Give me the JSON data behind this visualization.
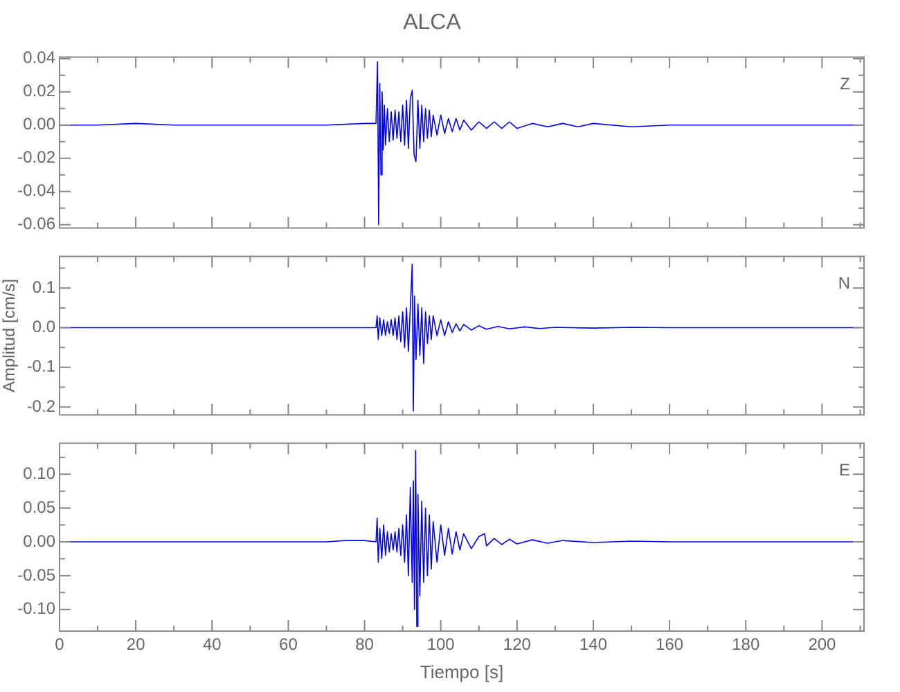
{
  "chart_data": [
    {
      "type": "line",
      "title": "ALCA",
      "annotations": [
        "Z"
      ],
      "marker": "none",
      "tick_labels": "y",
      "x": [
        0,
        10,
        20,
        30,
        40,
        50,
        60,
        70,
        80,
        83,
        83.4,
        83.7,
        84,
        84.3,
        84.6,
        84.9,
        85.2,
        85.5,
        86,
        86.5,
        87,
        87.5,
        88,
        88.5,
        89,
        89.5,
        90,
        90.5,
        91,
        91.5,
        92,
        92.5,
        93,
        93.5,
        94,
        94.5,
        95,
        95.5,
        96,
        96.5,
        97,
        97.5,
        98,
        99,
        100,
        101,
        102,
        103,
        104,
        105,
        106,
        108,
        110,
        112,
        114,
        116,
        118,
        120,
        124,
        128,
        132,
        136,
        140,
        150,
        160,
        170,
        180,
        190,
        200,
        210
      ],
      "series": [
        {
          "color": "#0000ff",
          "values": [
            0,
            0,
            0.001,
            0,
            0,
            0,
            0,
            0,
            0.001,
            0.001,
            0.038,
            -0.06,
            0.025,
            -0.03,
            0.02,
            -0.015,
            0.012,
            -0.012,
            0.01,
            -0.01,
            0.008,
            -0.009,
            0.009,
            -0.008,
            0.008,
            -0.01,
            0.012,
            -0.012,
            0.015,
            -0.014,
            0.016,
            0.021,
            -0.018,
            -0.022,
            0.015,
            -0.014,
            0.012,
            -0.01,
            0.01,
            -0.008,
            0.009,
            -0.007,
            0.006,
            -0.006,
            0.006,
            -0.005,
            0.004,
            -0.004,
            0.004,
            -0.003,
            0.003,
            -0.003,
            0.002,
            -0.002,
            0.002,
            -0.002,
            0.002,
            -0.002,
            0.001,
            -0.001,
            0.001,
            -0.001,
            0.001,
            -0.001,
            0,
            0,
            0,
            0,
            0,
            0
          ]
        }
      ],
      "xlim": [
        0,
        211
      ],
      "xticks": [
        0,
        {
          "value": 10,
          "label": null
        },
        20,
        {
          "value": 30,
          "label": null
        },
        40,
        {
          "value": 50,
          "label": null
        },
        60,
        {
          "value": 70,
          "label": null
        },
        80,
        {
          "value": 90,
          "label": null
        },
        100,
        {
          "value": 110,
          "label": null
        },
        120,
        {
          "value": 130,
          "label": null
        },
        140,
        {
          "value": 150,
          "label": null
        },
        160,
        {
          "value": 170,
          "label": null
        },
        180,
        {
          "value": 190,
          "label": null
        },
        200,
        {
          "value": 210,
          "label": null
        }
      ],
      "ylim": [
        -0.062,
        0.041
      ],
      "yticks": [
        {
          "value": -0.06,
          "label": "-0.06"
        },
        {
          "value": -0.05,
          "label": null
        },
        -0.04,
        {
          "value": -0.03,
          "label": null
        },
        -0.02,
        {
          "value": -0.01,
          "label": null
        },
        {
          "value": 0,
          "label": "0.00"
        },
        {
          "value": 0.01,
          "label": null
        },
        0.02,
        {
          "value": 0.03,
          "label": null
        },
        0.04
      ]
    },
    {
      "type": "line",
      "ylabel": "Amplitud [cm/s]",
      "annotations": [
        "N"
      ],
      "marker": "none",
      "tick_labels": "y",
      "x": [
        0,
        10,
        20,
        30,
        40,
        50,
        60,
        70,
        80,
        83,
        83.3,
        83.6,
        84,
        84.5,
        85,
        85.5,
        86,
        86.5,
        87,
        87.5,
        88,
        88.5,
        89,
        89.5,
        90,
        90.5,
        91,
        91.5,
        92,
        92.5,
        92.8,
        93.1,
        93.5,
        94,
        94.5,
        95,
        95.5,
        96,
        96.5,
        97,
        97.5,
        98,
        99,
        100,
        101,
        102,
        103,
        104,
        105,
        106,
        108,
        110,
        112,
        115,
        118,
        122,
        126,
        130,
        140,
        150,
        160,
        170,
        180,
        190,
        200,
        210
      ],
      "series": [
        {
          "color": "#0000ff",
          "values": [
            0,
            0,
            0,
            0,
            0,
            0,
            0,
            0,
            0,
            0,
            0.03,
            -0.03,
            0.025,
            -0.02,
            0.02,
            -0.02,
            0.015,
            -0.015,
            0.02,
            -0.02,
            0.025,
            -0.03,
            0.03,
            -0.035,
            0.04,
            -0.05,
            0.05,
            -0.06,
            0.05,
            0.16,
            -0.21,
            0.08,
            -0.08,
            0.06,
            -0.07,
            0.05,
            -0.09,
            0.04,
            -0.04,
            0.03,
            -0.03,
            0.03,
            -0.02,
            0.02,
            -0.02,
            0.015,
            -0.012,
            0.01,
            -0.008,
            0.008,
            -0.006,
            0.005,
            -0.004,
            0.003,
            -0.003,
            0.002,
            -0.002,
            0.001,
            -0.001,
            0.001,
            0,
            0,
            0,
            0,
            0,
            0
          ]
        }
      ],
      "xlim": [
        0,
        211
      ],
      "xticks": [
        0,
        {
          "value": 10,
          "label": null
        },
        20,
        {
          "value": 30,
          "label": null
        },
        40,
        {
          "value": 50,
          "label": null
        },
        60,
        {
          "value": 70,
          "label": null
        },
        80,
        {
          "value": 90,
          "label": null
        },
        100,
        {
          "value": 110,
          "label": null
        },
        120,
        {
          "value": 130,
          "label": null
        },
        140,
        {
          "value": 150,
          "label": null
        },
        160,
        {
          "value": 170,
          "label": null
        },
        180,
        {
          "value": 190,
          "label": null
        },
        200,
        {
          "value": 210,
          "label": null
        }
      ],
      "ylim": [
        -0.22,
        0.18
      ],
      "yticks": [
        -0.2,
        {
          "value": -0.15,
          "label": null
        },
        -0.1,
        {
          "value": -0.05,
          "label": null
        },
        {
          "value": 0,
          "label": "0.0"
        },
        {
          "value": 0.05,
          "label": null
        },
        0.1,
        {
          "value": 0.15,
          "label": null
        }
      ]
    },
    {
      "type": "line",
      "xlabel": "Tiempo [s]",
      "annotations": [
        "E"
      ],
      "marker": "none",
      "x": [
        0,
        10,
        20,
        30,
        40,
        50,
        60,
        70,
        75,
        80,
        83,
        83.3,
        83.6,
        84,
        84.5,
        85,
        85.5,
        86,
        86.5,
        87,
        87.5,
        88,
        88.5,
        89,
        89.5,
        90,
        90.5,
        91,
        91.5,
        92,
        92.5,
        92.8,
        93.1,
        93.4,
        93.7,
        94,
        94.5,
        95,
        95.5,
        96,
        96.5,
        97,
        97.5,
        98,
        99,
        100,
        101,
        102,
        103,
        104,
        105,
        106,
        108,
        110,
        111.5,
        112,
        114,
        116,
        118,
        120,
        124,
        128,
        132,
        140,
        150,
        160,
        170,
        180,
        190,
        200,
        210
      ],
      "series": [
        {
          "color": "#0000ff",
          "values": [
            0,
            0,
            0,
            0,
            0,
            0,
            0,
            0,
            0.002,
            0.002,
            0,
            0.035,
            -0.03,
            0.02,
            -0.025,
            0.025,
            -0.02,
            0.015,
            -0.015,
            0.012,
            -0.012,
            0.015,
            -0.015,
            0.02,
            -0.02,
            0.025,
            -0.03,
            0.04,
            -0.05,
            0.08,
            -0.06,
            0.09,
            -0.1,
            0.135,
            -0.125,
            0.07,
            -0.08,
            0.06,
            -0.06,
            0.05,
            -0.05,
            0.04,
            -0.04,
            0.03,
            -0.03,
            0.025,
            -0.02,
            0.02,
            -0.018,
            0.015,
            -0.012,
            0.012,
            -0.01,
            0.008,
            0.012,
            -0.006,
            0.005,
            -0.004,
            0.004,
            -0.003,
            0.003,
            -0.002,
            0.002,
            -0.001,
            0.001,
            0,
            0,
            0,
            0,
            0,
            0
          ]
        }
      ],
      "xlim": [
        0,
        211
      ],
      "xticks": [
        0,
        {
          "value": 10,
          "label": null
        },
        20,
        {
          "value": 30,
          "label": null
        },
        40,
        {
          "value": 50,
          "label": null
        },
        60,
        {
          "value": 70,
          "label": null
        },
        80,
        {
          "value": 90,
          "label": null
        },
        100,
        {
          "value": 110,
          "label": null
        },
        120,
        {
          "value": 130,
          "label": null
        },
        140,
        {
          "value": 150,
          "label": null
        },
        160,
        {
          "value": 170,
          "label": null
        },
        180,
        {
          "value": 190,
          "label": null
        },
        200,
        {
          "value": 210,
          "label": null
        }
      ],
      "ylim": [
        -0.132,
        0.146
      ],
      "yticks": [
        {
          "value": -0.1,
          "label": "-0.10"
        },
        {
          "value": -0.075,
          "label": null
        },
        {
          "value": -0.05,
          "label": "-0.05"
        },
        {
          "value": -0.025,
          "label": null
        },
        {
          "value": 0,
          "label": "0.00"
        },
        {
          "value": 0.025,
          "label": null
        },
        {
          "value": 0.05,
          "label": "0.05"
        },
        {
          "value": 0.075,
          "label": null
        },
        {
          "value": 0.1,
          "label": "0.10"
        },
        {
          "value": 0.125,
          "label": null
        }
      ]
    }
  ]
}
